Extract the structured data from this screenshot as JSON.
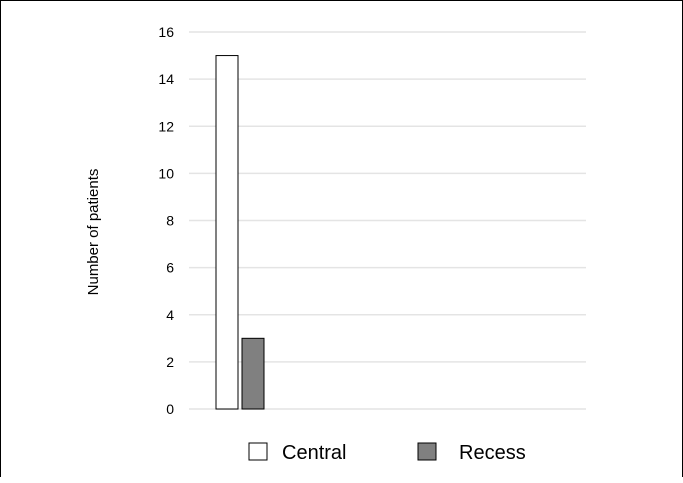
{
  "chart_data": {
    "type": "bar",
    "categories": [
      ""
    ],
    "series": [
      {
        "name": "Central",
        "values": [
          15
        ],
        "color": "#ffffff"
      },
      {
        "name": "Recess",
        "values": [
          3
        ],
        "color": "#808080"
      }
    ],
    "ylabel": "Number of patients",
    "ylim": [
      0,
      16
    ],
    "yticks": [
      0,
      2,
      4,
      6,
      8,
      10,
      12,
      14,
      16
    ],
    "grid": true,
    "legend_position": "bottom"
  }
}
